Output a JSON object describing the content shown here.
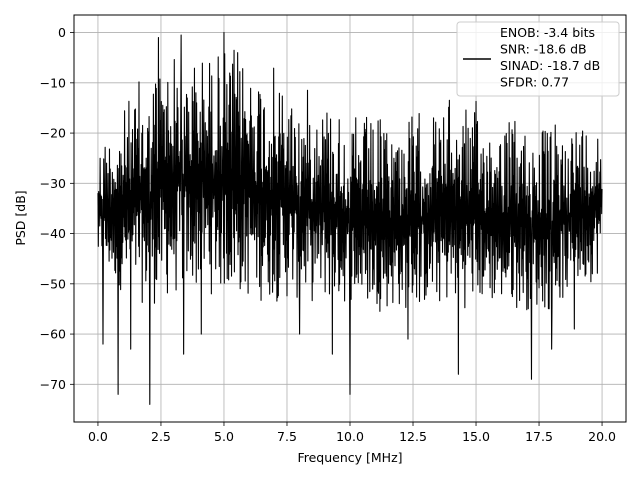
{
  "chart_data": {
    "type": "line",
    "title": "",
    "xlabel": "Frequency [MHz]",
    "ylabel": "PSD [dB]",
    "xlim": [
      -0.95,
      20.95
    ],
    "ylim": [
      -77.5,
      3.5
    ],
    "xticks": [
      0.0,
      2.5,
      5.0,
      7.5,
      10.0,
      12.5,
      15.0,
      17.5,
      20.0
    ],
    "xtick_labels": [
      "0.0",
      "2.5",
      "5.0",
      "7.5",
      "10.0",
      "12.5",
      "15.0",
      "17.5",
      "20.0"
    ],
    "yticks": [
      0,
      -10,
      -20,
      -30,
      -40,
      -50,
      -60,
      -70
    ],
    "ytick_labels": [
      "0",
      "−10",
      "−20",
      "−30",
      "−40",
      "−50",
      "−60",
      "−70"
    ],
    "grid": true,
    "legend_position": "top-right",
    "series": [
      {
        "name": "ENOB: -3.4 bits\nSNR: -18.6 dB\nSINAD: -18.7 dB\nSFDR: 0.77",
        "legend_lines": [
          "ENOB: -3.4 bits",
          "SNR: -18.6 dB",
          "SINAD: -18.7 dB",
          "SFDR: 0.77"
        ],
        "color": "#000000",
        "x_range": [
          0,
          20
        ],
        "envelope_upper": [
          [
            0,
            -20
          ],
          [
            1,
            -14
          ],
          [
            2,
            -5
          ],
          [
            2.5,
            -2
          ],
          [
            3,
            -1
          ],
          [
            4,
            -2
          ],
          [
            5,
            -1
          ],
          [
            6,
            -2
          ],
          [
            7,
            -6
          ],
          [
            8,
            -10
          ],
          [
            9,
            -10
          ],
          [
            10,
            -14
          ],
          [
            11,
            -16
          ],
          [
            12,
            -15
          ],
          [
            13,
            -14
          ],
          [
            14,
            -12
          ],
          [
            15,
            -13
          ],
          [
            16,
            -15
          ],
          [
            17,
            -16
          ],
          [
            18,
            -17
          ],
          [
            19,
            -15
          ],
          [
            20,
            -16
          ]
        ],
        "envelope_lower": [
          [
            0,
            -48
          ],
          [
            1,
            -52
          ],
          [
            2,
            -55
          ],
          [
            4,
            -52
          ],
          [
            6,
            -54
          ],
          [
            8,
            -54
          ],
          [
            10,
            -55
          ],
          [
            12,
            -56
          ],
          [
            14,
            -55
          ],
          [
            16,
            -55
          ],
          [
            18,
            -56
          ],
          [
            20,
            -48
          ]
        ],
        "notable_values": [
          {
            "x": 0.2,
            "y": -62
          },
          {
            "x": 0.8,
            "y": -72
          },
          {
            "x": 1.3,
            "y": -63
          },
          {
            "x": 2.05,
            "y": -74
          },
          {
            "x": 3.4,
            "y": -64
          },
          {
            "x": 4.1,
            "y": -60
          },
          {
            "x": 8.0,
            "y": -60
          },
          {
            "x": 9.3,
            "y": -64
          },
          {
            "x": 10.0,
            "y": -72
          },
          {
            "x": 12.3,
            "y": -61
          },
          {
            "x": 14.3,
            "y": -68
          },
          {
            "x": 17.2,
            "y": -69
          },
          {
            "x": 18.0,
            "y": -63
          },
          {
            "x": 18.9,
            "y": -59
          },
          {
            "x": 5.0,
            "y": 0
          },
          {
            "x": 3.3,
            "y": -0.5
          },
          {
            "x": 2.4,
            "y": -1
          }
        ]
      }
    ]
  }
}
